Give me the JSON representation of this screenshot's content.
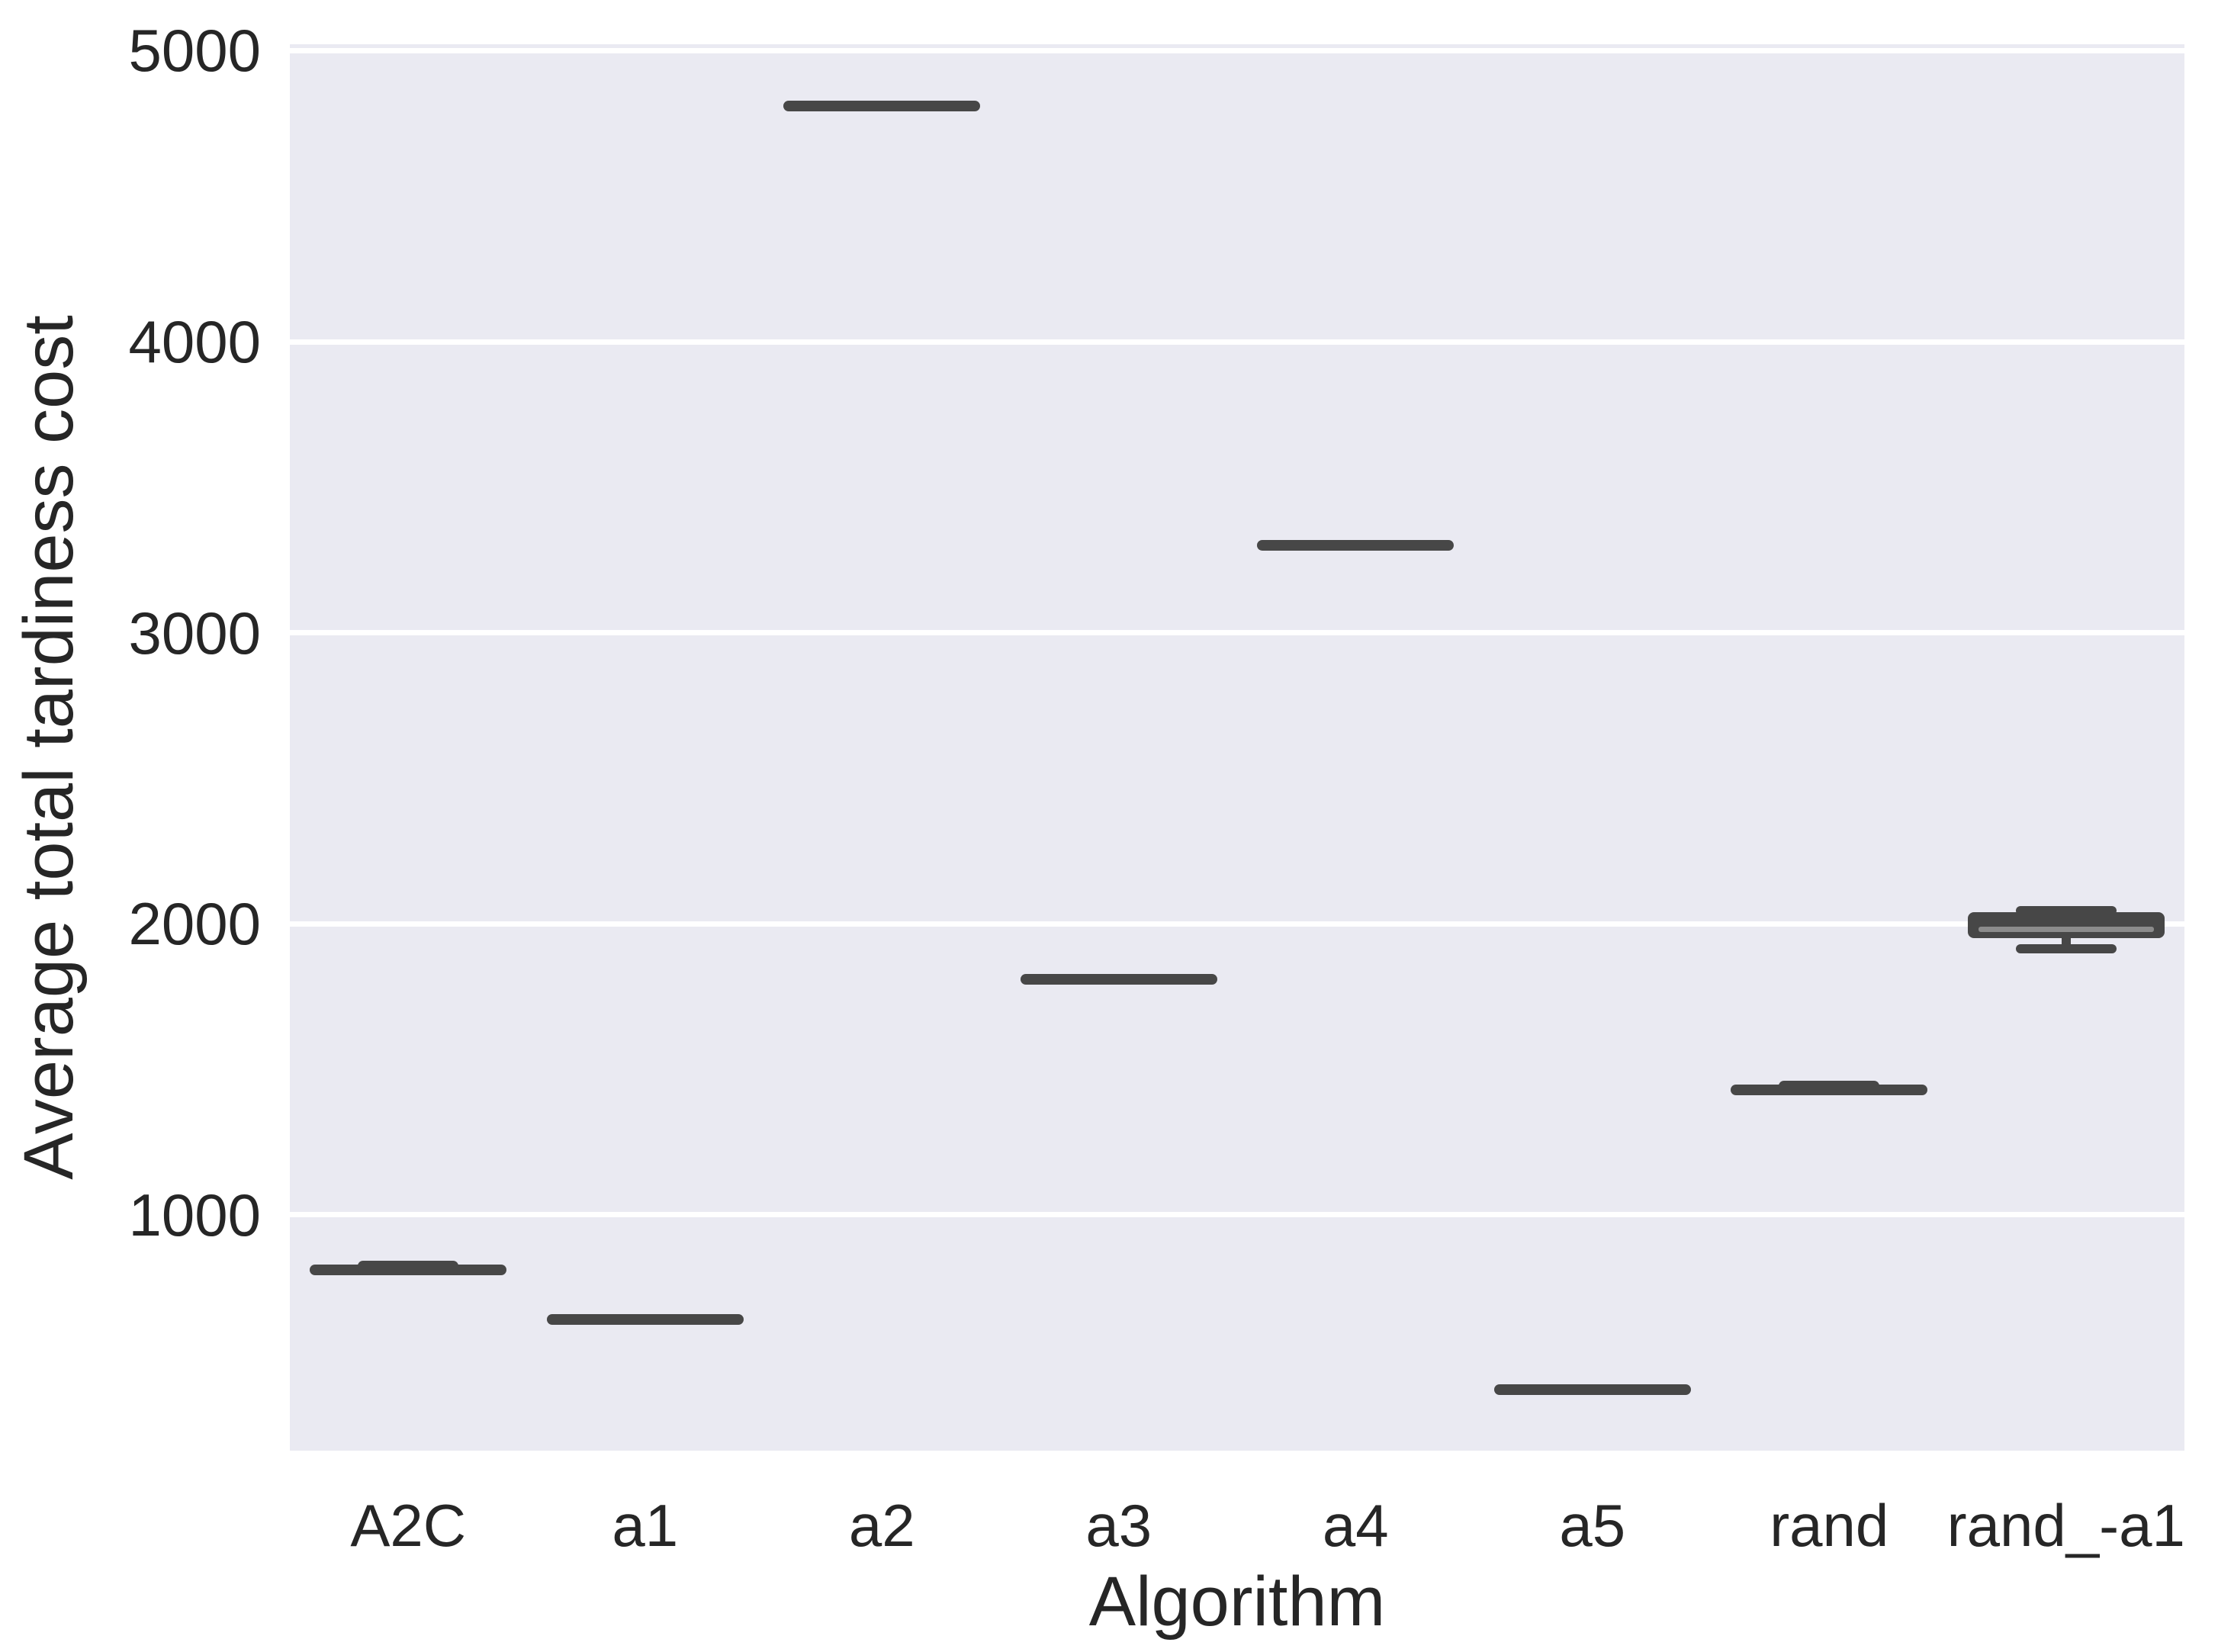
{
  "chart_data": {
    "type": "boxplot",
    "title": "",
    "xlabel": "Algorithm",
    "ylabel": "Average total tardiness cost",
    "categories": [
      "A2C",
      "a1",
      "a2",
      "a3",
      "a4",
      "a5",
      "rand",
      "rand_-a1"
    ],
    "series": [
      {
        "label": "A2C",
        "flat": true,
        "value": 810,
        "cap_bump": true
      },
      {
        "label": "a1",
        "flat": true,
        "value": 640,
        "cap_bump": false
      },
      {
        "label": "a2",
        "flat": true,
        "value": 4810,
        "cap_bump": false
      },
      {
        "label": "a3",
        "flat": true,
        "value": 1810,
        "cap_bump": false
      },
      {
        "label": "a4",
        "flat": true,
        "value": 3300,
        "cap_bump": false
      },
      {
        "label": "a5",
        "flat": true,
        "value": 400,
        "cap_bump": false
      },
      {
        "label": "rand",
        "flat": true,
        "value": 1430,
        "cap_bump": true
      },
      {
        "label": "rand_-a1",
        "flat": false,
        "median": 1982,
        "q1": 1950,
        "q3": 2040,
        "whisker_low": 1913,
        "whisker_high": 2045
      }
    ],
    "yticks": [
      1000,
      2000,
      3000,
      4000,
      5000
    ],
    "ylim": [
      190,
      5022
    ],
    "grid": true,
    "legend": null,
    "colors": {
      "figure_bg": "#ffffff",
      "axes_bg": "#eaeaf2",
      "grid": "#ffffff",
      "box": "#474747",
      "median_line": "#8c8c8c",
      "text": "#262626"
    }
  }
}
